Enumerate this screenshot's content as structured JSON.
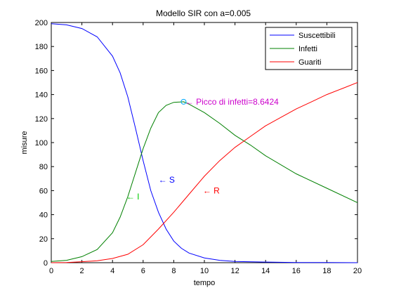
{
  "chart_data": {
    "type": "line",
    "title": "Modello SIR con a=0.005",
    "xlabel": "tempo",
    "ylabel": "misure",
    "xlim": [
      0,
      20
    ],
    "ylim": [
      0,
      200
    ],
    "xticks": [
      0,
      2,
      4,
      6,
      8,
      10,
      12,
      14,
      16,
      18,
      20
    ],
    "yticks": [
      0,
      20,
      40,
      60,
      80,
      100,
      120,
      140,
      160,
      180,
      200
    ],
    "grid": false,
    "legend_position": "top-right",
    "series": [
      {
        "name": "Suscettibili",
        "color": "#0000ff",
        "x": [
          0,
          1,
          2,
          3,
          4,
          4.5,
          5,
          5.5,
          6,
          6.5,
          7,
          7.5,
          8,
          8.5,
          9,
          10,
          11,
          12,
          14,
          16,
          18,
          20
        ],
        "y": [
          199,
          198,
          195,
          188,
          172,
          158,
          138,
          112,
          85,
          60,
          42,
          28,
          18,
          12,
          8,
          4,
          2,
          1,
          0.5,
          0.2,
          0.1,
          0
        ]
      },
      {
        "name": "Infetti",
        "color": "#008000",
        "x": [
          0,
          1,
          2,
          3,
          4,
          4.5,
          5,
          5.5,
          6,
          6.5,
          7,
          7.5,
          8,
          8.6424,
          9,
          10,
          11,
          12,
          13,
          14,
          16,
          18,
          20
        ],
        "y": [
          1,
          2,
          5,
          11,
          25,
          38,
          55,
          75,
          95,
          112,
          125,
          131,
          133.5,
          134,
          132,
          125,
          116,
          106,
          98,
          89,
          74,
          62,
          50
        ]
      },
      {
        "name": "Guariti",
        "color": "#ff0000",
        "x": [
          0,
          1,
          2,
          3,
          4,
          5,
          6,
          7,
          8,
          9,
          10,
          11,
          12,
          13,
          14,
          15,
          16,
          17,
          18,
          19,
          20
        ],
        "y": [
          0,
          0.2,
          0.8,
          1.6,
          3.5,
          7,
          15,
          28,
          42,
          57,
          72,
          85,
          96,
          105,
          114,
          121,
          128,
          134,
          140,
          145,
          150
        ]
      }
    ],
    "peak_marker": {
      "x": 8.6424,
      "y": 134,
      "color": "#00aaff"
    },
    "annotations": [
      {
        "text": "← S",
        "x": 7.0,
        "y": 69,
        "color": "#0000ff"
      },
      {
        "text": "← I",
        "x": 4.9,
        "y": 55,
        "color": "#00cc00"
      },
      {
        "text": "← R",
        "x": 9.9,
        "y": 60,
        "color": "#ff0000"
      },
      {
        "text": "← Picco di infetti=8.6424",
        "x": 8.75,
        "y": 134,
        "color": "#cc00cc"
      }
    ]
  }
}
